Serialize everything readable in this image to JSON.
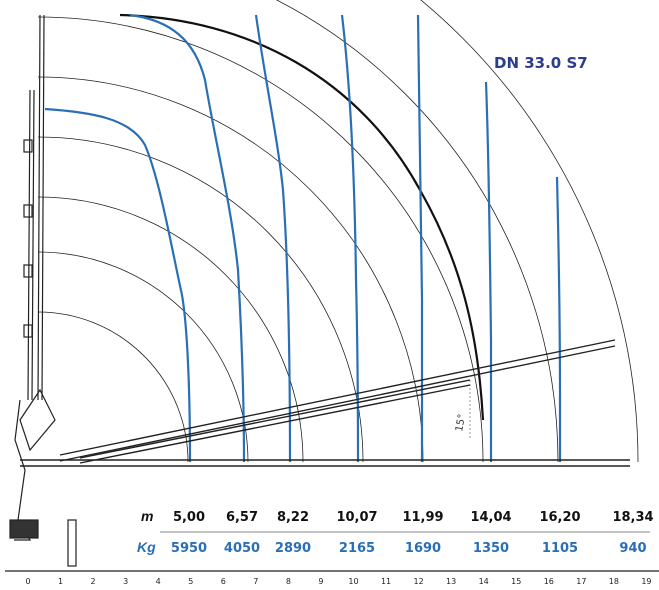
{
  "title": "DN 33.0 S7",
  "table": {
    "reach_label": "m",
    "load_label": "Kg",
    "reach": [
      "5,00",
      "6,57",
      "8,22",
      "10,07",
      "11,99",
      "14,04",
      "16,20",
      "18,34"
    ],
    "load": [
      "5950",
      "4050",
      "2890",
      "2165",
      "1690",
      "1350",
      "1105",
      "940"
    ]
  },
  "axis": {
    "ticks": [
      "0",
      "1",
      "2",
      "3",
      "4",
      "5",
      "6",
      "7",
      "8",
      "9",
      "10",
      "11",
      "12",
      "13",
      "14",
      "15",
      "16",
      "17",
      "18",
      "19"
    ]
  },
  "angle_label": "15°",
  "colors": {
    "load_curve": "#2a6fb5",
    "arc": "#222222",
    "title": "#2b3d8f",
    "boom": "#222222"
  }
}
